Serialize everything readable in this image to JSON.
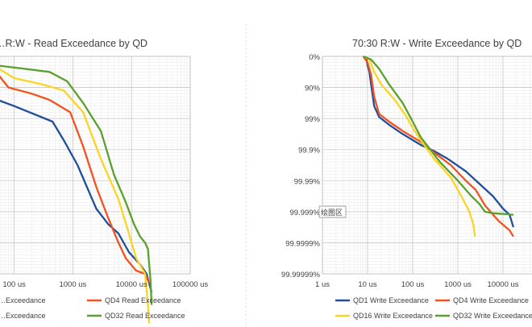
{
  "chart_data": [
    {
      "type": "line",
      "title": "…R:W - Read Exceedance by QD",
      "x_scale": "log",
      "y_scale": "exceedance-log",
      "grid": true,
      "legend_position": "bottom",
      "x_ticks_visible": [
        "100 us",
        "1000 us",
        "10000 us",
        "100000 us"
      ],
      "y_ticks_visible": [],
      "legend_visible": [
        {
          "label": "…Exceedance",
          "color": "#1f4e9c"
        },
        {
          "label": "QD4 Read Exceedance",
          "color": "#f4511e"
        },
        {
          "label": "…Exceedance",
          "color": "#f9d423"
        },
        {
          "label": "QD32 Read Exceedance",
          "color": "#5aa02c"
        }
      ],
      "series": [
        {
          "color": "#1f4e9c",
          "points": [
            [
              30,
              0
            ],
            [
              42,
              0.1
            ],
            [
              48,
              1.2
            ],
            [
              52,
              1.4
            ],
            [
              100,
              1.6
            ],
            [
              450,
              2.1
            ],
            [
              700,
              2.7
            ],
            [
              1200,
              3.5
            ],
            [
              2500,
              4.9
            ],
            [
              4000,
              5.4
            ],
            [
              6000,
              5.7
            ],
            [
              9000,
              6.3
            ],
            [
              14000,
              6.7
            ],
            [
              18000,
              7.0
            ],
            [
              22000,
              7.6
            ]
          ]
        },
        {
          "color": "#f4511e",
          "points": [
            [
              30,
              0
            ],
            [
              44,
              0.1
            ],
            [
              54,
              0.6
            ],
            [
              80,
              1.0
            ],
            [
              200,
              1.2
            ],
            [
              400,
              1.4
            ],
            [
              900,
              1.8
            ],
            [
              1500,
              2.9
            ],
            [
              2500,
              4.2
            ],
            [
              4000,
              5.2
            ],
            [
              6000,
              6.0
            ],
            [
              8000,
              6.5
            ],
            [
              12000,
              6.9
            ],
            [
              17000,
              7.0
            ],
            [
              20000,
              7.3
            ]
          ]
        },
        {
          "color": "#f9d423",
          "points": [
            [
              30,
              0
            ],
            [
              46,
              0.1
            ],
            [
              55,
              0.4
            ],
            [
              100,
              0.7
            ],
            [
              300,
              0.9
            ],
            [
              700,
              1.1
            ],
            [
              1500,
              1.8
            ],
            [
              3000,
              3.3
            ],
            [
              6000,
              4.6
            ],
            [
              9000,
              5.7
            ],
            [
              12000,
              6.5
            ],
            [
              17000,
              7.0
            ],
            [
              19000,
              8.0
            ],
            [
              20000,
              8.6
            ]
          ]
        },
        {
          "color": "#5aa02c",
          "points": [
            [
              30,
              0
            ],
            [
              40,
              0.1
            ],
            [
              55,
              0.3
            ],
            [
              150,
              0.4
            ],
            [
              400,
              0.5
            ],
            [
              800,
              0.8
            ],
            [
              1500,
              1.5
            ],
            [
              3000,
              2.4
            ],
            [
              5000,
              3.8
            ],
            [
              8000,
              4.7
            ],
            [
              11000,
              5.4
            ],
            [
              14000,
              5.8
            ],
            [
              17000,
              6.0
            ],
            [
              19000,
              6.2
            ],
            [
              21000,
              7.2
            ],
            [
              22000,
              8.0
            ]
          ]
        }
      ]
    },
    {
      "type": "line",
      "title": "70:30 R:W - Write Exceedance by QD",
      "x_scale": "log",
      "y_scale": "exceedance-log",
      "grid": true,
      "legend_position": "bottom",
      "y_ticks_visible": [
        "0%",
        "90%",
        "99%",
        "99.9%",
        "99.99%",
        "99.999%",
        "99.9999%",
        "99.99999%"
      ],
      "x_ticks_visible": [
        "1 us",
        "10 us",
        "100 us",
        "1000 us",
        "10000 us"
      ],
      "legend_visible": [
        {
          "label": "QD1 Write Exceedance",
          "color": "#1f4e9c"
        },
        {
          "label": "QD4 Write Exceedance",
          "color": "#f4511e"
        },
        {
          "label": "QD16 Write Exceedance",
          "color": "#f9d423"
        },
        {
          "label": "QD32 Write Exceedance",
          "color": "#5aa02c"
        }
      ],
      "overlay_text": "绘图区",
      "series": [
        {
          "color": "#1f4e9c",
          "points": [
            [
              8,
              0
            ],
            [
              9.5,
              0.1
            ],
            [
              10,
              0.3
            ],
            [
              11,
              0.5
            ],
            [
              12,
              0.9
            ],
            [
              14,
              1.6
            ],
            [
              18,
              1.95
            ],
            [
              30,
              2.2
            ],
            [
              60,
              2.5
            ],
            [
              150,
              2.85
            ],
            [
              300,
              3.05
            ],
            [
              600,
              3.3
            ],
            [
              1500,
              3.7
            ],
            [
              3000,
              4.1
            ],
            [
              6000,
              4.5
            ],
            [
              10000,
              4.9
            ],
            [
              14000,
              5.1
            ],
            [
              17000,
              5.5
            ]
          ]
        },
        {
          "color": "#f4511e",
          "points": [
            [
              8,
              0
            ],
            [
              10,
              0.2
            ],
            [
              12,
              0.6
            ],
            [
              14,
              1.3
            ],
            [
              18,
              1.85
            ],
            [
              30,
              2.1
            ],
            [
              60,
              2.4
            ],
            [
              150,
              2.75
            ],
            [
              300,
              3.1
            ],
            [
              700,
              3.5
            ],
            [
              1500,
              4.0
            ],
            [
              2500,
              4.3
            ],
            [
              4000,
              4.8
            ],
            [
              8000,
              5.3
            ],
            [
              14000,
              5.6
            ],
            [
              17000,
              5.8
            ]
          ]
        },
        {
          "color": "#f9d423",
          "points": [
            [
              8,
              0
            ],
            [
              11,
              0.1
            ],
            [
              14,
              0.5
            ],
            [
              20,
              0.9
            ],
            [
              40,
              1.4
            ],
            [
              70,
              1.9
            ],
            [
              100,
              2.3
            ],
            [
              150,
              2.7
            ],
            [
              300,
              3.3
            ],
            [
              700,
              3.9
            ],
            [
              1200,
              4.5
            ],
            [
              1800,
              5.0
            ],
            [
              2200,
              5.4
            ],
            [
              2400,
              5.8
            ]
          ]
        },
        {
          "color": "#5aa02c",
          "points": [
            [
              8,
              0
            ],
            [
              12,
              0.1
            ],
            [
              18,
              0.4
            ],
            [
              30,
              0.9
            ],
            [
              60,
              1.5
            ],
            [
              100,
              2.1
            ],
            [
              150,
              2.6
            ],
            [
              400,
              3.4
            ],
            [
              1000,
              4.0
            ],
            [
              2000,
              4.5
            ],
            [
              3000,
              4.75
            ],
            [
              4000,
              5.0
            ],
            [
              6000,
              5.05
            ],
            [
              12000,
              5.08
            ],
            [
              17000,
              5.1
            ]
          ]
        }
      ]
    }
  ]
}
